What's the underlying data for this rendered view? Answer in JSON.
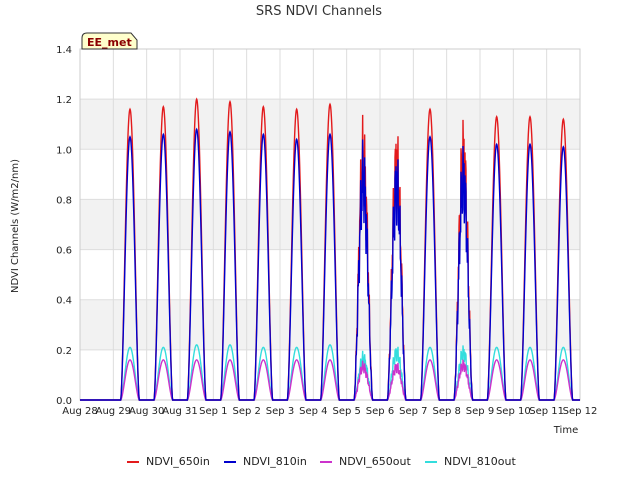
{
  "chart_data": {
    "type": "line",
    "title": "SRS NDVI Channels",
    "xlabel": "Time",
    "ylabel": "NDVI Channels (W/m2/nm)",
    "ylim": [
      0.0,
      1.4
    ],
    "yticks": [
      "0.0",
      "0.2",
      "0.4",
      "0.6",
      "0.8",
      "1.0",
      "1.2",
      "1.4"
    ],
    "xlim_days": [
      0,
      15
    ],
    "xtick_labels": [
      "Aug 28",
      "Aug 29",
      "Aug 30",
      "Aug 31",
      "Sep 1",
      "Sep 2",
      "Sep 3",
      "Sep 4",
      "Sep 5",
      "Sep 6",
      "Sep 7",
      "Sep 8",
      "Sep 9",
      "Sep 10",
      "Sep 11",
      "Sep 12"
    ],
    "grid": true,
    "badge": "EE_met",
    "legend_position": "bottom",
    "daily_peaks": {
      "days": [
        "Aug 29",
        "Aug 30",
        "Aug 31",
        "Sep 1",
        "Sep 2",
        "Sep 3",
        "Sep 4",
        "Sep 5",
        "Sep 6",
        "Sep 7",
        "Sep 8",
        "Sep 9",
        "Sep 10",
        "Sep 11"
      ],
      "NDVI_650in": [
        1.16,
        1.17,
        1.2,
        1.19,
        1.17,
        1.16,
        1.18,
        1.16,
        1.14,
        1.16,
        1.18,
        1.13,
        1.13,
        1.12
      ],
      "NDVI_810in": [
        1.05,
        1.06,
        1.08,
        1.07,
        1.06,
        1.04,
        1.06,
        1.06,
        1.04,
        1.05,
        1.07,
        1.02,
        1.02,
        1.01
      ],
      "NDVI_650out": [
        0.16,
        0.16,
        0.16,
        0.16,
        0.16,
        0.16,
        0.16,
        0.16,
        0.16,
        0.16,
        0.17,
        0.16,
        0.16,
        0.16
      ],
      "NDVI_810out": [
        0.21,
        0.21,
        0.22,
        0.22,
        0.21,
        0.21,
        0.22,
        0.2,
        0.23,
        0.21,
        0.23,
        0.21,
        0.21,
        0.21
      ]
    },
    "series": [
      {
        "name": "NDVI_650in",
        "color": "#e31a1c"
      },
      {
        "name": "NDVI_810in",
        "color": "#0000cc"
      },
      {
        "name": "NDVI_650out",
        "color": "#cc33cc"
      },
      {
        "name": "NDVI_810out",
        "color": "#33dddd"
      }
    ]
  }
}
